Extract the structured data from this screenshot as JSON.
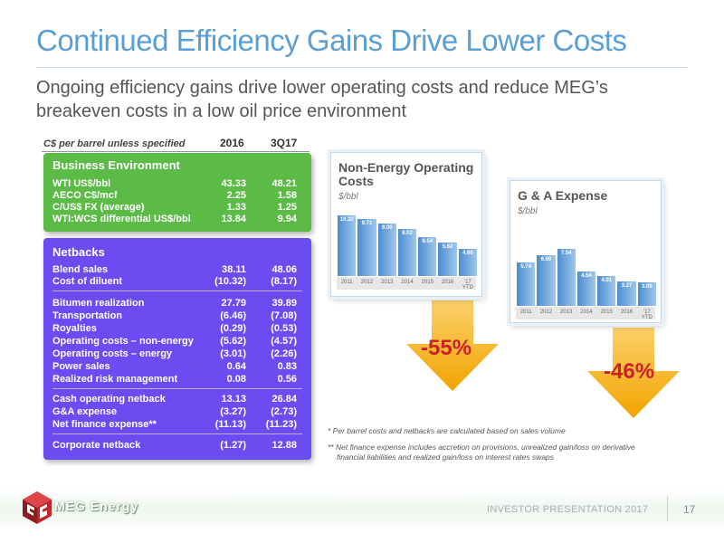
{
  "title": "Continued Efficiency Gains Drive Lower Costs",
  "subtitle": "Ongoing efficiency gains drive lower operating costs and reduce MEG’s breakeven costs in a low oil price environment",
  "table": {
    "unit_note": "C$ per barrel unless specified",
    "col1": "2016",
    "col2": "3Q17",
    "business": {
      "title": "Business Environment",
      "rows": [
        {
          "label": "WTI US$/bbl",
          "v1": "43.33",
          "v2": "48.21"
        },
        {
          "label": "AECO C$/mcf",
          "v1": "2.25",
          "v2": "1.58"
        },
        {
          "label": "C/US$ FX (average)",
          "v1": "1.33",
          "v2": "1.25"
        },
        {
          "label": "WTI:WCS differential US$/bbl",
          "v1": "13.84",
          "v2": "9.94"
        }
      ]
    },
    "netbacks": {
      "title": "Netbacks",
      "rows": [
        {
          "label": "Blend sales",
          "v1": "38.11",
          "v2": "48.06"
        },
        {
          "label": "Cost of diluent",
          "v1": "(10.32)",
          "v2": "(8.17)"
        },
        {
          "label": "Bitumen realization",
          "v1": "27.79",
          "v2": "39.89"
        },
        {
          "label": "Transportation",
          "v1": "(6.46)",
          "v2": "(7.08)"
        },
        {
          "label": "Royalties",
          "v1": "(0.29)",
          "v2": "(0.53)"
        },
        {
          "label": "Operating costs – non-energy",
          "v1": "(5.62)",
          "v2": "(4.57)"
        },
        {
          "label": "Operating costs – energy",
          "v1": "(3.01)",
          "v2": "(2.26)"
        },
        {
          "label": "Power sales",
          "v1": "0.64",
          "v2": "0.83"
        },
        {
          "label": "Realized risk management",
          "v1": "0.08",
          "v2": "0.56"
        },
        {
          "label": "Cash operating netback",
          "v1": "13.13",
          "v2": "26.84"
        },
        {
          "label": "G&A expense",
          "v1": "(3.27)",
          "v2": "(2.73)"
        },
        {
          "label": "Net finance expense**",
          "v1": "(11.13)",
          "v2": "(11.23)"
        },
        {
          "label": "Corporate netback",
          "v1": "(1.27)",
          "v2": "12.88"
        }
      ]
    }
  },
  "chart_data": [
    {
      "type": "bar",
      "title": "Non-Energy Operating Costs",
      "ylabel": "$/bbl",
      "categories": [
        "2011",
        "2012",
        "2013",
        "2014",
        "2015",
        "2016",
        "'17 YTD"
      ],
      "values": [
        10.32,
        9.71,
        9.0,
        8.02,
        6.54,
        5.62,
        4.66
      ],
      "labels": [
        "10.32",
        "9.71",
        "9.00",
        "8.02",
        "6.54",
        "5.62",
        "4.66"
      ],
      "change_label": "-55%"
    },
    {
      "type": "bar",
      "title": "G & A Expense",
      "ylabel": "$/bbl",
      "categories": [
        "2011",
        "2012",
        "2013",
        "2014",
        "2015",
        "2016",
        "'17 YTD"
      ],
      "values": [
        5.74,
        6.69,
        7.54,
        4.54,
        4.01,
        3.27,
        3.09
      ],
      "labels": [
        "5.74",
        "6.69",
        "7.54",
        "4.54",
        "4.01",
        "3.27",
        "3.09"
      ],
      "change_label": "-46%"
    }
  ],
  "notes": {
    "note1": "*  Per barrel costs and netbacks are calculated based on sales volume",
    "note2_line1": "**  Net finance expense includes accretion on provisions, unrealized gain/loss on derivative",
    "note2_line2": "financial liabilities and realized gain/loss on interest rates swaps"
  },
  "footer": {
    "logo": "MEG Energy",
    "text": "INVESTOR PRESENTATION 2017",
    "page": "17"
  },
  "colors": {
    "title": "#5a9fd4",
    "green_panel": "#5cba47",
    "purple_panel": "#6a4cf0",
    "arrow": "#f6b21a",
    "percent": "#cc2027"
  }
}
